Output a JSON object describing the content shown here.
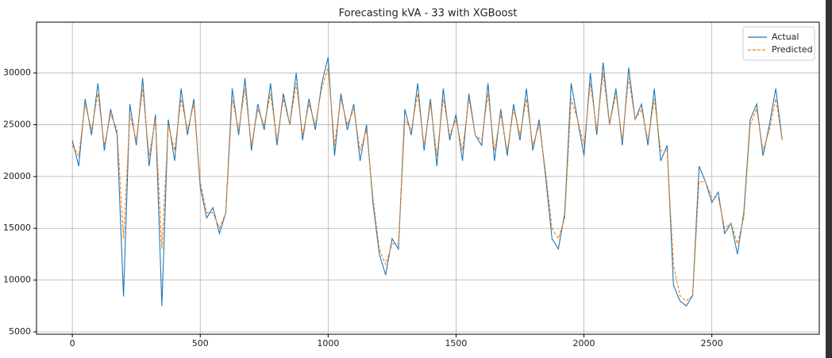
{
  "chart_data": {
    "type": "line",
    "title": "Forecasting kVA - 33 with XGBoost",
    "x": [
      0,
      25,
      50,
      75,
      100,
      125,
      150,
      175,
      200,
      225,
      250,
      275,
      300,
      325,
      350,
      375,
      400,
      425,
      450,
      475,
      500,
      525,
      550,
      575,
      600,
      625,
      650,
      675,
      700,
      725,
      750,
      775,
      800,
      825,
      850,
      875,
      900,
      925,
      950,
      975,
      1000,
      1025,
      1050,
      1075,
      1100,
      1125,
      1150,
      1175,
      1200,
      1225,
      1250,
      1275,
      1300,
      1325,
      1350,
      1375,
      1400,
      1425,
      1450,
      1475,
      1500,
      1525,
      1550,
      1575,
      1600,
      1625,
      1650,
      1675,
      1700,
      1725,
      1750,
      1775,
      1800,
      1825,
      1850,
      1875,
      1900,
      1925,
      1950,
      1975,
      2000,
      2025,
      2050,
      2075,
      2100,
      2125,
      2150,
      2175,
      2200,
      2225,
      2250,
      2275,
      2300,
      2325,
      2350,
      2375,
      2400,
      2425,
      2450,
      2475,
      2500,
      2525,
      2550,
      2575,
      2600,
      2625,
      2650,
      2675,
      2700,
      2725,
      2750,
      2775
    ],
    "series": [
      {
        "name": "Actual",
        "color": "#1f77b4",
        "dashed": false,
        "values": [
          23500,
          21000,
          27500,
          24000,
          29000,
          22500,
          26500,
          24000,
          8400,
          27000,
          23000,
          29500,
          21000,
          26000,
          7500,
          25500,
          21500,
          28500,
          24000,
          27500,
          19000,
          16000,
          17000,
          14500,
          16500,
          28500,
          24000,
          29500,
          22500,
          27000,
          24500,
          29000,
          23000,
          28000,
          25000,
          30000,
          23500,
          27500,
          24500,
          29000,
          31500,
          22000,
          28000,
          24500,
          27000,
          21500,
          25000,
          17500,
          12500,
          10500,
          14000,
          13000,
          26500,
          24000,
          29000,
          22500,
          27500,
          21000,
          28500,
          23500,
          26000,
          21500,
          28000,
          24000,
          23000,
          29000,
          21500,
          26500,
          22000,
          27000,
          23500,
          28500,
          22500,
          25500,
          20000,
          14000,
          13000,
          16500,
          29000,
          25500,
          22000,
          30000,
          24000,
          31000,
          25000,
          28500,
          23000,
          30500,
          25500,
          27000,
          23000,
          28500,
          21500,
          23000,
          9500,
          8000,
          7500,
          8500,
          21000,
          19500,
          17500,
          18500,
          14500,
          15500,
          12500,
          16500,
          25500,
          27000,
          22000,
          25000,
          28500,
          23500
        ]
      },
      {
        "name": "Predicted",
        "color": "#ff7f0e",
        "dashed": true,
        "values": [
          23000,
          22000,
          27000,
          24500,
          28000,
          23000,
          26000,
          24500,
          14000,
          26000,
          23500,
          28500,
          22000,
          25500,
          13000,
          25000,
          22500,
          27500,
          24500,
          27000,
          19500,
          16500,
          16500,
          15000,
          16500,
          27500,
          24500,
          28500,
          23000,
          26500,
          25000,
          28000,
          23500,
          27500,
          25000,
          29000,
          24000,
          27000,
          25000,
          28500,
          30500,
          23000,
          27500,
          25000,
          26500,
          22500,
          24500,
          18000,
          13000,
          11500,
          13500,
          13500,
          25500,
          24500,
          28000,
          23000,
          27000,
          22000,
          27500,
          24000,
          25500,
          22500,
          27500,
          24000,
          23500,
          28000,
          22500,
          26000,
          22500,
          26500,
          24000,
          27500,
          23000,
          25000,
          20500,
          15000,
          14000,
          16000,
          27500,
          25500,
          23000,
          29000,
          24500,
          30000,
          25000,
          28000,
          23500,
          29500,
          25500,
          26500,
          23500,
          27500,
          22500,
          22500,
          11500,
          8500,
          8000,
          8500,
          19500,
          19500,
          18000,
          18000,
          15000,
          15500,
          13500,
          16000,
          25000,
          26500,
          22500,
          24500,
          27500,
          23500
        ]
      }
    ],
    "xlim": [
      -140,
      2920
    ],
    "ylim": [
      4770,
      34900
    ],
    "xticks": [
      0,
      500,
      1000,
      1500,
      2000,
      2500
    ],
    "yticks": [
      5000,
      10000,
      15000,
      20000,
      25000,
      30000
    ],
    "grid": true,
    "legend": "upper right"
  }
}
